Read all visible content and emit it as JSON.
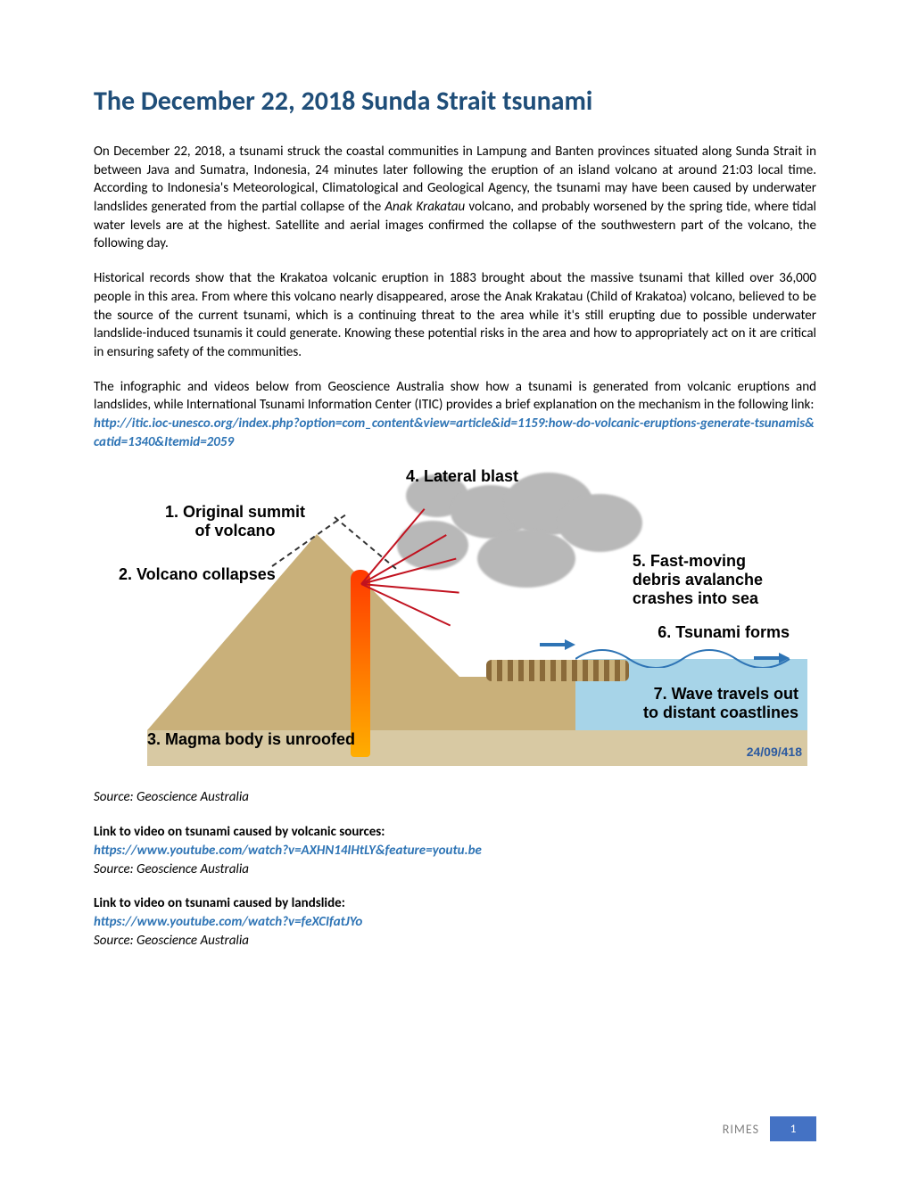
{
  "title": "The December 22, 2018 Sunda Strait tsunami",
  "title_color": "#1f4e79",
  "paragraphs": {
    "p1_a": "On December 22, 2018, a tsunami struck the coastal communities in Lampung and Banten provinces situated along Sunda Strait in between Java and Sumatra, Indonesia, 24 minutes later following the eruption of an island volcano at around 21:03 local time. According to Indonesia's Meteorological, Climatological and Geological Agency, the tsunami may have been caused by underwater landslides generated from the partial collapse of the ",
    "p1_italic": "Anak Krakatau",
    "p1_b": " volcano, and probably worsened by the spring tide, where tidal water levels are at the highest. Satellite and aerial images confirmed the collapse of the southwestern part of the volcano, the following day.",
    "p2": "Historical records show that the Krakatoa volcanic eruption in 1883 brought about the massive tsunami that killed over 36,000 people in this area. From where this volcano nearly disappeared, arose the Anak Krakatau (Child of Krakatoa) volcano, believed to be the source of the current tsunami, which is a continuing threat to the area while it's still erupting due to possible underwater landslide-induced tsunamis it could generate. Knowing these potential risks in the area and how to appropriately act on it are critical in ensuring safety of the communities.",
    "p3": "The infographic and videos below from Geoscience Australia show how a tsunami is generated from volcanic eruptions and landslides, while International Tsunami Information Center (ITIC) provides a brief explanation on the mechanism in the following link:",
    "p3_link": "http://itic.ioc-unesco.org/index.php?option=com_content&view=article&id=1159:how-do-volcanic-eruptions-generate-tsunamis&catid=1340&Itemid=2059"
  },
  "diagram": {
    "labels": {
      "l1": "1. Original summit\nof volcano",
      "l2": "2. Volcano collapses",
      "l3": "3. Magma body is unroofed",
      "l4": "4. Lateral blast",
      "l5": "5. Fast-moving\ndebris avalanche\ncrashes into sea",
      "l6": "6. Tsunami forms",
      "l7": "7. Wave travels out\nto distant coastlines"
    },
    "colors": {
      "volcano": "#c9b07a",
      "subsurface": "#d8c9a3",
      "sea": "#a7d4e8",
      "magma_top": "#ff3a00",
      "magma_bottom": "#ffae00",
      "cloud": "#b8b8b8",
      "blast": "#c1121f",
      "arrow": "#2e74b5"
    },
    "stamp": "24/09/418"
  },
  "source": "Source: Geoscience Australia",
  "video1": {
    "heading": "Link to video on tsunami caused by volcanic sources:",
    "url": "https://www.youtube.com/watch?v=AXHN14IHtLY&feature=youtu.be",
    "source": "Source: Geoscience Australia"
  },
  "video2": {
    "heading": "Link to video on tsunami caused by landslide:",
    "url": "https://www.youtube.com/watch?v=feXCIfatJYo",
    "source": "Source: Geoscience Australia"
  },
  "footer": {
    "org": "RIMES",
    "page": "1",
    "page_bg": "#4472c4"
  }
}
